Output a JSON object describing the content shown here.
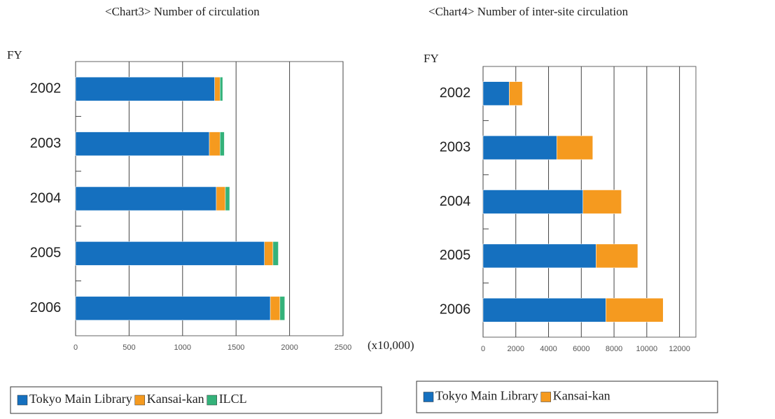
{
  "chart_data": [
    {
      "type": "bar",
      "orientation": "horizontal",
      "stacked": true,
      "title": "<Chart3> Number of circulation",
      "y_label": "FY",
      "x_unit": "(x10,000)",
      "categories": [
        "2002",
        "2003",
        "2004",
        "2005",
        "2006"
      ],
      "series": [
        {
          "name": "Tokyo Main Library",
          "color": "#1570bf",
          "values": [
            1300,
            1250,
            1315,
            1765,
            1820
          ]
        },
        {
          "name": "Kansai-kan",
          "color": "#f59a1f",
          "values": [
            50,
            100,
            85,
            80,
            90
          ]
        },
        {
          "name": "ILCL",
          "color": "#34b27a",
          "values": [
            25,
            40,
            40,
            50,
            45
          ]
        }
      ],
      "xlim": [
        0,
        2500
      ],
      "xticks": [
        0,
        500,
        1000,
        1500,
        2000,
        2500
      ],
      "grid": true
    },
    {
      "type": "bar",
      "orientation": "horizontal",
      "stacked": true,
      "title": "<Chart4> Number of inter-site circulation",
      "y_label": "FY",
      "categories": [
        "2002",
        "2003",
        "2004",
        "2005",
        "2006"
      ],
      "series": [
        {
          "name": "Tokyo Main Library",
          "color": "#1570bf",
          "values": [
            1600,
            4500,
            6100,
            6900,
            7500
          ]
        },
        {
          "name": "Kansai-kan",
          "color": "#f59a1f",
          "values": [
            800,
            2200,
            2350,
            2550,
            3500
          ]
        }
      ],
      "xlim": [
        0,
        13000
      ],
      "xticks": [
        0,
        2000,
        4000,
        6000,
        8000,
        10000,
        12000
      ],
      "grid": true
    }
  ]
}
